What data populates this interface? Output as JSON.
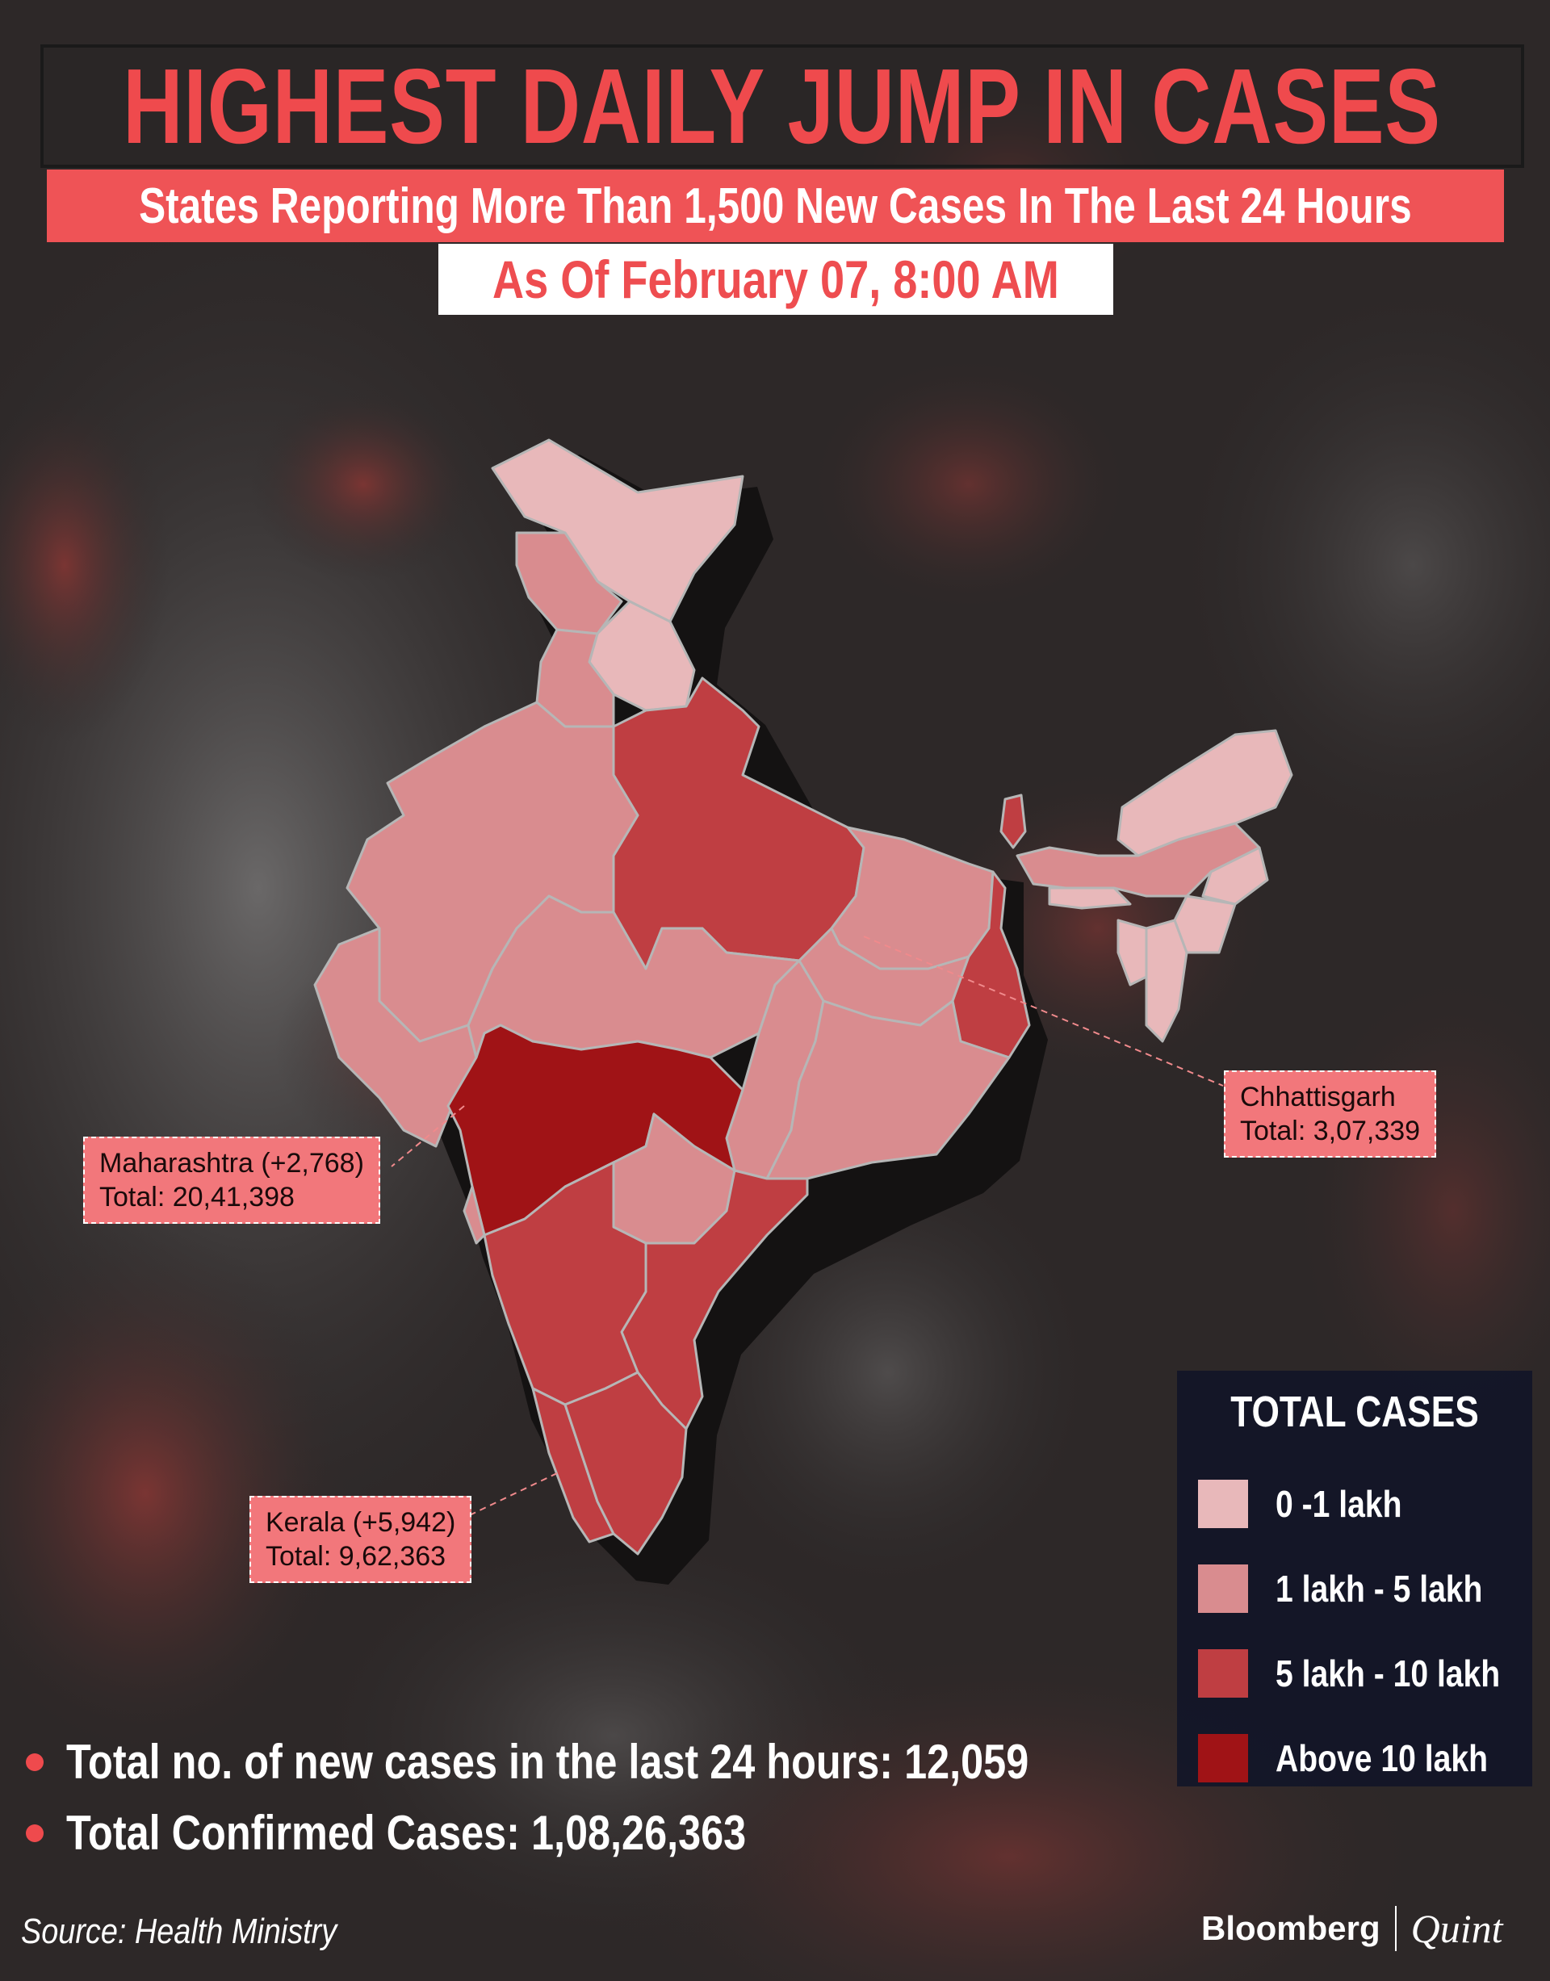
{
  "title": "HIGHEST DAILY JUMP IN CASES",
  "subtitle": "States Reporting More Than 1,500 New Cases In The Last 24 Hours",
  "date": "As Of February 07, 8:00 AM",
  "callouts": {
    "maharashtra": {
      "line1": "Maharashtra (+2,768)",
      "line2": "Total: 20,41,398"
    },
    "chhattisgarh": {
      "line1": "Chhattisgarh",
      "line2": "Total: 3,07,339"
    },
    "kerala": {
      "line1": "Kerala (+5,942)",
      "line2": "Total: 9,62,363"
    }
  },
  "legend": {
    "title": "TOTAL CASES",
    "items": [
      {
        "label": "0 -1 lakh",
        "color": "#e8b8ba"
      },
      {
        "label": "1 lakh - 5 lakh",
        "color": "#d98c8f"
      },
      {
        "label": "5 lakh - 10 lakh",
        "color": "#bf3e42"
      },
      {
        "label": "Above 10 lakh",
        "color": "#a01316"
      }
    ]
  },
  "stats": {
    "new_cases": "Total no. of new cases in the last 24 hours: 12,059",
    "confirmed": "Total Confirmed Cases: 1,08,26,363"
  },
  "source": "Source: Health Ministry",
  "brand": {
    "primary": "Bloomberg",
    "secondary": "Quint"
  },
  "colors": {
    "accent": "#ef4a4d",
    "legend_bg": "#121628"
  }
}
